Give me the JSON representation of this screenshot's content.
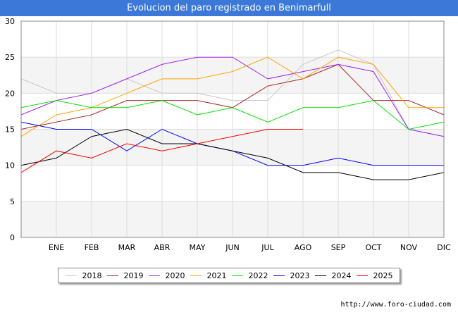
{
  "title": "Evolucion del paro registrado en Benimarfull",
  "source": "http://www.foro-ciudad.com",
  "chart_data": {
    "type": "line",
    "categories": [
      "",
      "ENE",
      "FEB",
      "MAR",
      "ABR",
      "MAY",
      "JUN",
      "JUL",
      "AGO",
      "SEP",
      "OCT",
      "NOV",
      "DIC"
    ],
    "ylim": [
      0,
      30
    ],
    "yticks": [
      0,
      5,
      10,
      15,
      20,
      25,
      30
    ],
    "grid": true,
    "legend_position": "bottom",
    "series": [
      {
        "name": "2018",
        "color": "#c8c8c8",
        "values": [
          22,
          20,
          20,
          22,
          20,
          20,
          19,
          19,
          24,
          26,
          24,
          15,
          14
        ]
      },
      {
        "name": "2019",
        "color": "#a52a2a",
        "values": [
          15,
          16,
          17,
          19,
          19,
          19,
          18,
          21,
          22,
          24,
          19,
          19,
          17
        ]
      },
      {
        "name": "2020",
        "color": "#a020f0",
        "values": [
          17,
          19,
          20,
          22,
          24,
          25,
          25,
          22,
          23,
          24,
          23,
          15,
          14
        ]
      },
      {
        "name": "2021",
        "color": "#ffa500",
        "values": [
          14,
          17,
          18,
          20,
          22,
          22,
          23,
          25,
          22,
          25,
          24,
          18,
          18
        ]
      },
      {
        "name": "2022",
        "color": "#00e000",
        "values": [
          18,
          19,
          18,
          18,
          19,
          17,
          18,
          16,
          18,
          18,
          19,
          15,
          16
        ]
      },
      {
        "name": "2023",
        "color": "#0000ff",
        "values": [
          16,
          15,
          15,
          12,
          15,
          13,
          12,
          10,
          10,
          11,
          10,
          10,
          10
        ]
      },
      {
        "name": "2024",
        "color": "#000000",
        "values": [
          10,
          11,
          14,
          15,
          13,
          13,
          12,
          11,
          9,
          9,
          8,
          8,
          9
        ]
      },
      {
        "name": "2025",
        "color": "#ff0000",
        "values": [
          9,
          12,
          11,
          13,
          12,
          13,
          14,
          15,
          15,
          null,
          null,
          null,
          null
        ]
      }
    ]
  }
}
